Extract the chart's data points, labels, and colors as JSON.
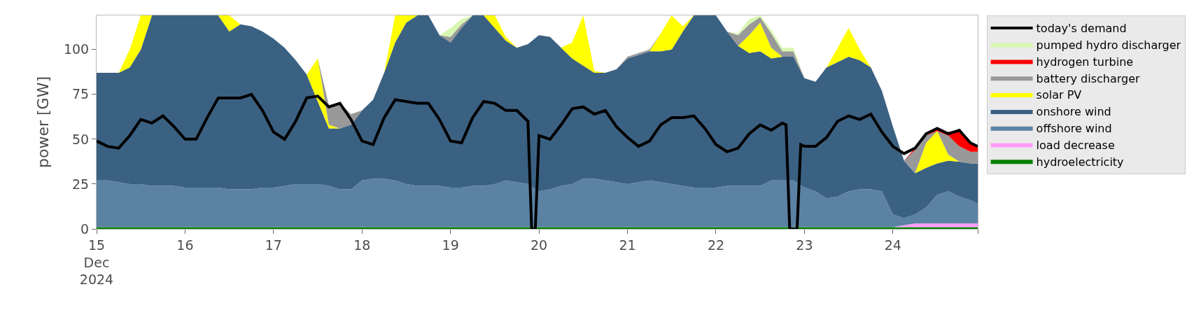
{
  "chart_data": {
    "type": "area",
    "stacked": true,
    "ylabel": "power [GW]",
    "legend": "right",
    "grid": false,
    "ylim": [
      0,
      119
    ],
    "yticks": [
      0,
      25,
      50,
      75,
      100
    ],
    "xlim": [
      "2024-12-15T00:00",
      "2024-12-24T23:00"
    ],
    "xticks": [
      {
        "value": "2024-12-15",
        "label": "15\nDec\n2024"
      },
      {
        "value": "2024-12-16",
        "label": "16"
      },
      {
        "value": "2024-12-17",
        "label": "17"
      },
      {
        "value": "2024-12-18",
        "label": "18"
      },
      {
        "value": "2024-12-19",
        "label": "19"
      },
      {
        "value": "2024-12-20",
        "label": "20"
      },
      {
        "value": "2024-12-21",
        "label": "21"
      },
      {
        "value": "2024-12-22",
        "label": "22"
      },
      {
        "value": "2024-12-23",
        "label": "23"
      },
      {
        "value": "2024-12-24",
        "label": "24"
      },
      {
        "value": "2024-12-24T23:00",
        "label": null
      }
    ],
    "x": [
      "2024-12-15T00:00",
      "2024-12-15T03:00",
      "2024-12-15T06:00",
      "2024-12-15T09:00",
      "2024-12-15T12:00",
      "2024-12-15T15:00",
      "2024-12-15T18:00",
      "2024-12-15T21:00",
      "2024-12-16T00:00",
      "2024-12-16T03:00",
      "2024-12-16T06:00",
      "2024-12-16T09:00",
      "2024-12-16T12:00",
      "2024-12-16T15:00",
      "2024-12-16T18:00",
      "2024-12-16T21:00",
      "2024-12-17T00:00",
      "2024-12-17T03:00",
      "2024-12-17T06:00",
      "2024-12-17T09:00",
      "2024-12-17T12:00",
      "2024-12-17T15:00",
      "2024-12-17T18:00",
      "2024-12-17T21:00",
      "2024-12-18T00:00",
      "2024-12-18T03:00",
      "2024-12-18T06:00",
      "2024-12-18T09:00",
      "2024-12-18T12:00",
      "2024-12-18T15:00",
      "2024-12-18T18:00",
      "2024-12-18T21:00",
      "2024-12-19T00:00",
      "2024-12-19T03:00",
      "2024-12-19T06:00",
      "2024-12-19T09:00",
      "2024-12-19T12:00",
      "2024-12-19T15:00",
      "2024-12-19T18:00",
      "2024-12-19T21:00",
      "2024-12-20T00:00",
      "2024-12-20T03:00",
      "2024-12-20T06:00",
      "2024-12-20T09:00",
      "2024-12-20T12:00",
      "2024-12-20T15:00",
      "2024-12-20T18:00",
      "2024-12-20T21:00",
      "2024-12-21T00:00",
      "2024-12-21T03:00",
      "2024-12-21T06:00",
      "2024-12-21T09:00",
      "2024-12-21T12:00",
      "2024-12-21T15:00",
      "2024-12-21T18:00",
      "2024-12-21T21:00",
      "2024-12-22T00:00",
      "2024-12-22T03:00",
      "2024-12-22T06:00",
      "2024-12-22T09:00",
      "2024-12-22T12:00",
      "2024-12-22T15:00",
      "2024-12-22T18:00",
      "2024-12-22T21:00",
      "2024-12-23T00:00",
      "2024-12-23T03:00",
      "2024-12-23T06:00",
      "2024-12-23T09:00",
      "2024-12-23T12:00",
      "2024-12-23T15:00",
      "2024-12-23T18:00",
      "2024-12-23T21:00",
      "2024-12-24T00:00",
      "2024-12-24T03:00",
      "2024-12-24T06:00",
      "2024-12-24T09:00",
      "2024-12-24T12:00",
      "2024-12-24T15:00",
      "2024-12-24T18:00",
      "2024-12-24T21:00",
      "2024-12-24T23:00"
    ],
    "series": [
      {
        "name": "hydroelectricity",
        "color": "#008000",
        "values": [
          1,
          1,
          1,
          1,
          1,
          1,
          1,
          1,
          1,
          1,
          1,
          1,
          1,
          1,
          1,
          1,
          1,
          1,
          1,
          1,
          1,
          1,
          1,
          1,
          1,
          1,
          1,
          1,
          1,
          1,
          1,
          1,
          1,
          1,
          1,
          1,
          1,
          1,
          1,
          1,
          1,
          1,
          1,
          1,
          1,
          1,
          1,
          1,
          1,
          1,
          1,
          1,
          1,
          1,
          1,
          1,
          1,
          1,
          1,
          1,
          1,
          1,
          1,
          1,
          1,
          1,
          1,
          1,
          1,
          1,
          1,
          1,
          1,
          1,
          1,
          1,
          1,
          1,
          1,
          1,
          1
        ]
      },
      {
        "name": "load decrease",
        "color": "#ff9cf8",
        "values": [
          null,
          null,
          null,
          null,
          null,
          null,
          null,
          null,
          null,
          null,
          null,
          null,
          null,
          null,
          null,
          null,
          null,
          null,
          null,
          null,
          null,
          null,
          null,
          null,
          null,
          null,
          null,
          null,
          null,
          null,
          null,
          null,
          null,
          null,
          null,
          null,
          null,
          null,
          null,
          null,
          null,
          null,
          null,
          null,
          null,
          null,
          null,
          null,
          null,
          null,
          null,
          null,
          null,
          null,
          null,
          null,
          null,
          null,
          null,
          null,
          null,
          null,
          null,
          null,
          null,
          null,
          null,
          null,
          null,
          null,
          null,
          null,
          0,
          1,
          2,
          2,
          2,
          2,
          2,
          2,
          2
        ]
      },
      {
        "name": "offshore wind",
        "color": "#5b82a3",
        "values": [
          26,
          26,
          25,
          24,
          24,
          23,
          23,
          23,
          22,
          22,
          22,
          22,
          21,
          21,
          21,
          22,
          22,
          23,
          24,
          24,
          24,
          23,
          21,
          21,
          26,
          27,
          27,
          26,
          24,
          23,
          23,
          23,
          22,
          22,
          23,
          23,
          24,
          26,
          25,
          24,
          20,
          21,
          23,
          24,
          27,
          27,
          26,
          25,
          24,
          25,
          26,
          25,
          24,
          23,
          22,
          22,
          22,
          23,
          23,
          23,
          23,
          26,
          26,
          26,
          22,
          20,
          16,
          17,
          20,
          21,
          21,
          20,
          7,
          4,
          5,
          9,
          16,
          18,
          15,
          13,
          11
        ]
      },
      {
        "name": "onshore wind",
        "color": "#3b6182",
        "values": [
          60,
          60,
          61,
          65,
          75,
          95,
          95,
          95,
          96,
          96,
          96,
          96,
          88,
          92,
          91,
          87,
          83,
          77,
          69,
          61,
          46,
          32,
          34,
          36,
          39,
          44,
          59,
          77,
          90,
          95,
          95,
          84,
          81,
          89,
          95,
          95,
          87,
          78,
          75,
          78,
          87,
          85,
          77,
          70,
          63,
          59,
          60,
          63,
          70,
          71,
          72,
          73,
          75,
          86,
          96,
          96,
          96,
          86,
          78,
          74,
          75,
          68,
          69,
          69,
          61,
          61,
          73,
          75,
          75,
          72,
          68,
          56,
          49,
          32,
          23,
          22,
          17.5,
          17,
          19.5,
          20.5,
          22.5
        ]
      },
      {
        "name": "solar PV",
        "color": "#ffff00",
        "values": [
          null,
          null,
          0,
          10,
          19,
          0,
          null,
          null,
          null,
          null,
          null,
          0,
          9,
          0,
          null,
          null,
          null,
          null,
          null,
          0,
          24,
          2,
          0,
          null,
          null,
          null,
          0,
          15,
          4,
          0,
          null,
          null,
          null,
          null,
          null,
          0,
          7,
          2,
          0,
          null,
          null,
          null,
          0,
          9,
          28,
          1,
          0,
          null,
          null,
          null,
          0,
          10,
          19,
          3,
          0,
          null,
          null,
          null,
          0,
          10,
          16,
          6,
          0,
          null,
          null,
          null,
          0,
          8,
          16,
          6,
          0,
          null,
          null,
          null,
          0,
          14,
          18,
          3.5,
          0,
          null,
          null
        ]
      },
      {
        "name": "battery discharger",
        "color": "#999999",
        "values": [
          null,
          null,
          null,
          null,
          null,
          null,
          null,
          null,
          null,
          null,
          null,
          null,
          null,
          null,
          null,
          null,
          null,
          null,
          null,
          null,
          0,
          11,
          14,
          6,
          0,
          null,
          null,
          null,
          null,
          null,
          null,
          0,
          3,
          2,
          0,
          null,
          null,
          null,
          null,
          null,
          null,
          null,
          null,
          null,
          null,
          null,
          null,
          0,
          1,
          1,
          1,
          0,
          null,
          null,
          null,
          null,
          null,
          0,
          6,
          6,
          3,
          8,
          3,
          3,
          0,
          null,
          null,
          null,
          null,
          null,
          null,
          null,
          null,
          0,
          13,
          4,
          0,
          10.5,
          8.5,
          6.5,
          6.5
        ]
      },
      {
        "name": "hydrogen turbine",
        "color": "#ff0000",
        "values": [
          null,
          null,
          null,
          null,
          null,
          null,
          null,
          null,
          null,
          null,
          null,
          null,
          null,
          null,
          null,
          null,
          null,
          null,
          null,
          null,
          null,
          null,
          null,
          null,
          null,
          null,
          null,
          null,
          null,
          null,
          null,
          null,
          null,
          null,
          null,
          null,
          null,
          null,
          null,
          null,
          null,
          null,
          null,
          null,
          null,
          null,
          null,
          null,
          null,
          null,
          null,
          null,
          null,
          null,
          null,
          null,
          null,
          null,
          null,
          null,
          null,
          null,
          null,
          null,
          null,
          null,
          null,
          null,
          null,
          null,
          null,
          null,
          null,
          0,
          1,
          0,
          1,
          2,
          9,
          4.5,
          3
        ]
      },
      {
        "name": "pumped hydro discharger",
        "color": "#d8f7b0",
        "values": [
          null,
          null,
          null,
          null,
          null,
          null,
          null,
          null,
          null,
          null,
          null,
          null,
          null,
          null,
          null,
          null,
          null,
          null,
          null,
          null,
          null,
          null,
          null,
          null,
          null,
          null,
          null,
          null,
          null,
          null,
          null,
          0,
          5,
          3,
          0,
          null,
          null,
          null,
          null,
          null,
          null,
          null,
          null,
          null,
          null,
          null,
          null,
          null,
          null,
          null,
          null,
          null,
          null,
          null,
          null,
          null,
          null,
          0,
          1,
          3,
          1,
          2,
          2,
          2,
          0,
          null,
          null,
          null,
          null,
          null,
          null,
          null,
          null,
          null,
          null,
          null,
          null,
          null,
          null,
          null,
          null
        ]
      },
      {
        "name": "today's demand",
        "color": "#000000",
        "type": "line",
        "x": [
          "2024-12-15T00:00",
          "2024-12-15T03:00",
          "2024-12-15T06:00",
          "2024-12-15T09:00",
          "2024-12-15T12:00",
          "2024-12-15T15:00",
          "2024-12-15T18:00",
          "2024-12-15T21:00",
          "2024-12-16T00:00",
          "2024-12-16T03:00",
          "2024-12-16T06:00",
          "2024-12-16T09:00",
          "2024-12-16T12:00",
          "2024-12-16T15:00",
          "2024-12-16T18:00",
          "2024-12-16T21:00",
          "2024-12-17T00:00",
          "2024-12-17T03:00",
          "2024-12-17T06:00",
          "2024-12-17T09:00",
          "2024-12-17T12:00",
          "2024-12-17T15:00",
          "2024-12-17T18:00",
          "2024-12-17T21:00",
          "2024-12-18T00:00",
          "2024-12-18T03:00",
          "2024-12-18T06:00",
          "2024-12-18T09:00",
          "2024-12-18T12:00",
          "2024-12-18T15:00",
          "2024-12-18T18:00",
          "2024-12-18T21:00",
          "2024-12-19T00:00",
          "2024-12-19T03:00",
          "2024-12-19T06:00",
          "2024-12-19T09:00",
          "2024-12-19T12:00",
          "2024-12-19T15:00",
          "2024-12-19T18:00",
          "2024-12-19T21:00",
          "2024-12-19T22:00",
          "2024-12-19T23:00",
          "2024-12-20T00:00",
          "2024-12-20T03:00",
          "2024-12-20T06:00",
          "2024-12-20T09:00",
          "2024-12-20T12:00",
          "2024-12-20T15:00",
          "2024-12-20T18:00",
          "2024-12-20T21:00",
          "2024-12-21T00:00",
          "2024-12-21T03:00",
          "2024-12-21T06:00",
          "2024-12-21T09:00",
          "2024-12-21T12:00",
          "2024-12-21T15:00",
          "2024-12-21T18:00",
          "2024-12-21T21:00",
          "2024-12-22T00:00",
          "2024-12-22T03:00",
          "2024-12-22T06:00",
          "2024-12-22T09:00",
          "2024-12-22T12:00",
          "2024-12-22T15:00",
          "2024-12-22T18:00",
          "2024-12-22T19:00",
          "2024-12-22T20:00",
          "2024-12-22T21:00",
          "2024-12-22T22:00",
          "2024-12-22T23:00",
          "2024-12-23T00:00",
          "2024-12-23T03:00",
          "2024-12-23T06:00",
          "2024-12-23T09:00",
          "2024-12-23T12:00",
          "2024-12-23T15:00",
          "2024-12-23T18:00",
          "2024-12-23T21:00",
          "2024-12-24T00:00",
          "2024-12-24T03:00",
          "2024-12-24T06:00",
          "2024-12-24T09:00",
          "2024-12-24T12:00",
          "2024-12-24T15:00",
          "2024-12-24T18:00",
          "2024-12-24T21:00",
          "2024-12-24T23:00"
        ],
        "values": [
          49,
          46,
          45,
          52,
          61,
          59,
          63,
          57,
          50,
          50,
          62,
          73,
          73,
          73,
          75,
          66,
          54,
          50,
          60,
          73,
          74,
          68,
          70,
          61,
          49,
          47,
          62,
          72,
          71,
          70,
          70,
          61,
          49,
          48,
          62,
          71,
          70,
          66,
          66,
          60,
          0,
          0,
          52,
          50,
          58,
          67,
          68,
          64,
          66,
          57,
          51,
          46,
          49,
          58,
          62,
          62,
          63,
          56,
          47,
          43,
          45,
          53,
          58,
          55,
          59,
          58,
          0,
          0,
          0,
          47,
          46,
          46,
          51,
          60,
          63,
          61,
          64,
          54,
          46,
          42,
          45,
          53,
          56,
          53,
          55,
          48,
          46
        ]
      }
    ]
  }
}
